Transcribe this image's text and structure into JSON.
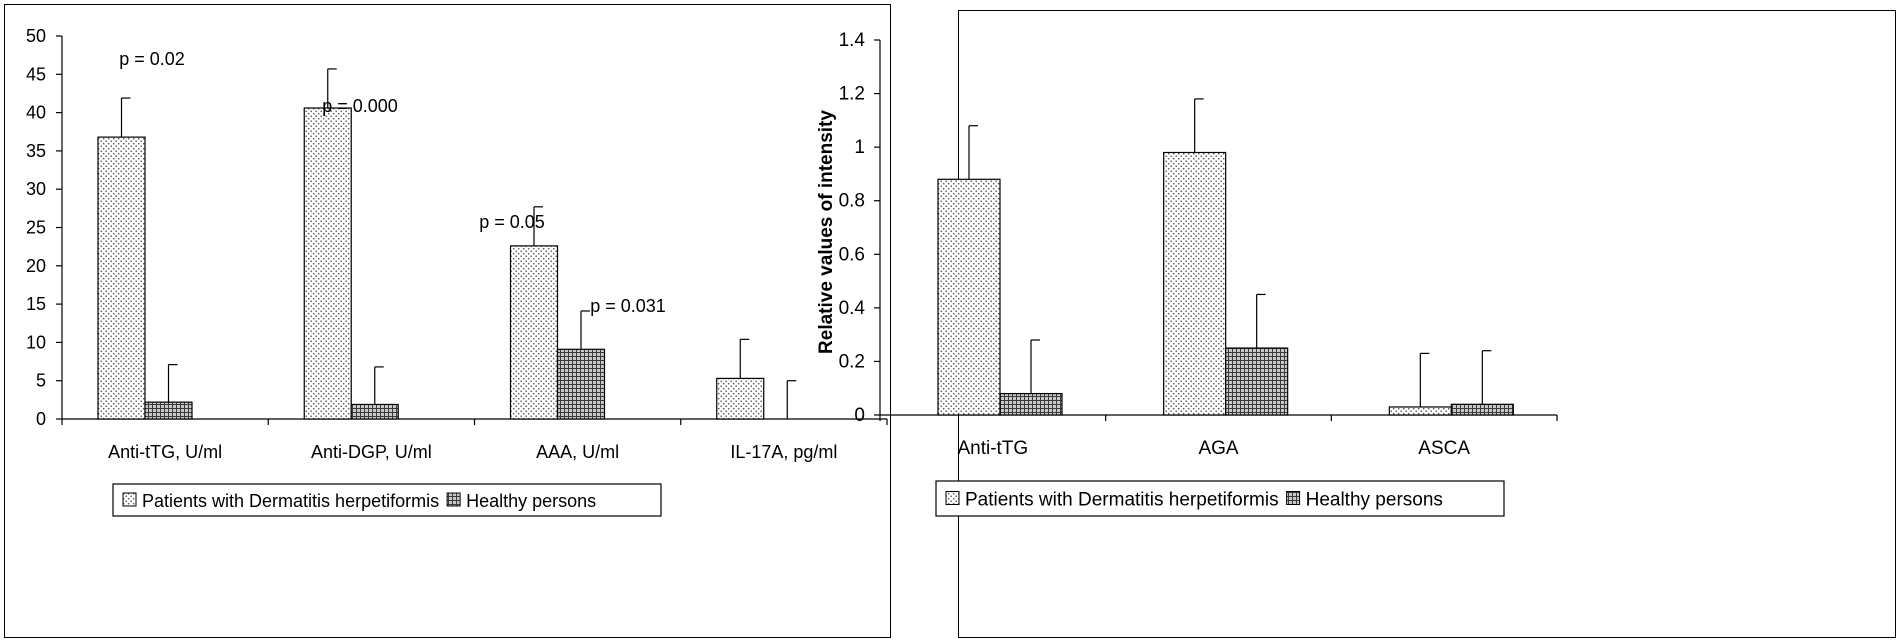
{
  "chart_data": [
    {
      "type": "bar",
      "title": "",
      "xlabel": "",
      "ylabel": "",
      "ylim": [
        0,
        50
      ],
      "ytick_step": 5,
      "categories": [
        "Anti-tTG, U/ml",
        "Anti-DGP, U/ml",
        "AAA, U/ml",
        "IL-17A, pg/ml"
      ],
      "series": [
        {
          "name": "Patients with Dermatitis herpetiformis",
          "pattern": "dots",
          "values": [
            36.8,
            40.6,
            22.6,
            5.3
          ],
          "errors": [
            5.1,
            5.1,
            5.1,
            5.1
          ]
        },
        {
          "name": "Healthy persons",
          "pattern": "grid",
          "values": [
            2.2,
            1.9,
            9.1,
            0
          ],
          "errors": [
            4.9,
            4.9,
            5.0,
            5.0
          ]
        }
      ],
      "annotations": [
        "p = 0.02",
        "p = 0.000",
        "p = 0.05",
        "p = 0.031"
      ],
      "legend": "bottom-center"
    },
    {
      "type": "bar",
      "title": "",
      "xlabel": "",
      "ylabel": "Relative values of intensity",
      "ylim": [
        0,
        1.4
      ],
      "ytick_step": 0.2,
      "yticks": [
        "0",
        "0.2",
        "0.4",
        "0.6",
        "0.8",
        "1",
        "1.2",
        "1.4"
      ],
      "categories": [
        "Anti-tTG",
        "AGA",
        "ASCA"
      ],
      "series": [
        {
          "name": "Patients with Dermatitis herpetiformis",
          "pattern": "dots",
          "values": [
            0.88,
            0.98,
            0.03
          ],
          "errors": [
            0.2,
            0.2,
            0.2
          ]
        },
        {
          "name": "Healthy persons",
          "pattern": "grid",
          "values": [
            0.08,
            0.25,
            0.04
          ],
          "errors": [
            0.2,
            0.2,
            0.2
          ]
        }
      ],
      "annotations": [],
      "legend": "bottom-center"
    }
  ]
}
